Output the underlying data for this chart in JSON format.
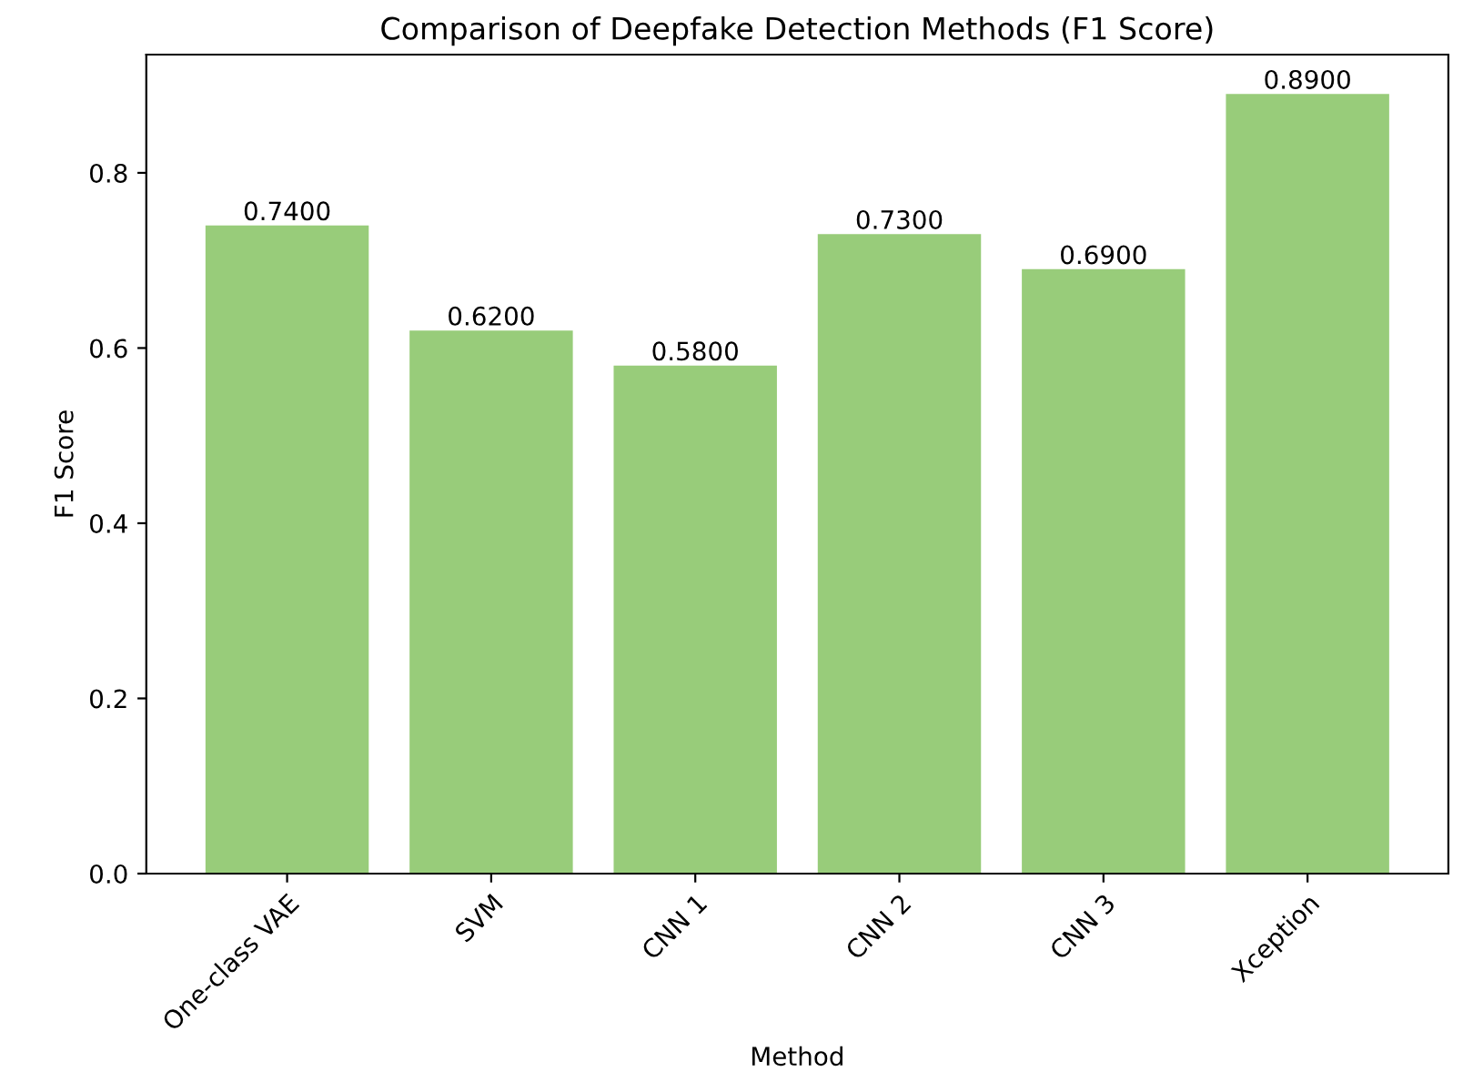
{
  "chart_data": {
    "type": "bar",
    "title": "Comparison of Deepfake Detection Methods (F1 Score)",
    "xlabel": "Method",
    "ylabel": "F1 Score",
    "categories": [
      "One-class VAE",
      "SVM",
      "CNN 1",
      "CNN 2",
      "CNN 3",
      "Xception"
    ],
    "values": [
      0.74,
      0.62,
      0.58,
      0.73,
      0.69,
      0.89
    ],
    "value_labels": [
      "0.7400",
      "0.6200",
      "0.5800",
      "0.7300",
      "0.6900",
      "0.8900"
    ],
    "color": "#98cc7a",
    "ylim": [
      0,
      0.935
    ],
    "yticks": [
      {
        "value": 0,
        "label": "0.0"
      },
      {
        "value": 0.2,
        "label": "0.2"
      },
      {
        "value": 0.4,
        "label": "0.4"
      },
      {
        "value": 0.6,
        "label": "0.6"
      },
      {
        "value": 0.8,
        "label": "0.8"
      }
    ]
  }
}
